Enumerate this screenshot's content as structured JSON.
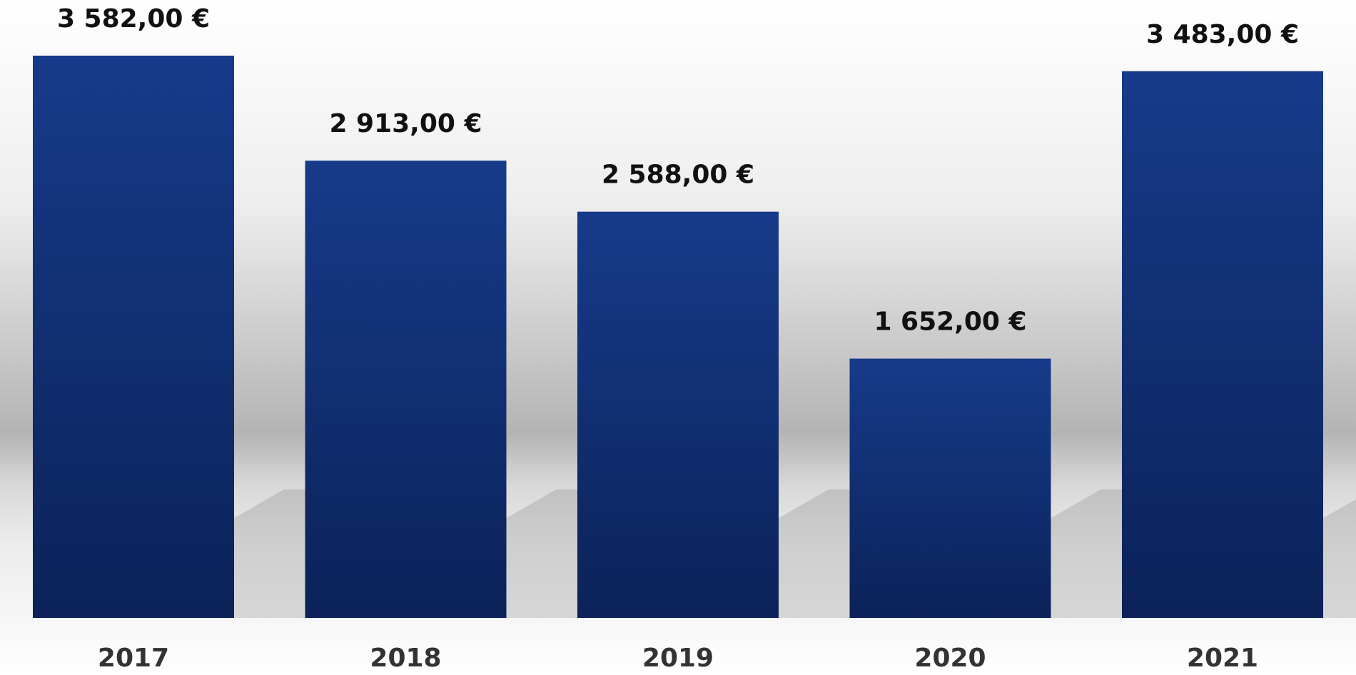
{
  "chart_data": {
    "type": "bar",
    "categories": [
      "2017",
      "2018",
      "2019",
      "2020",
      "2021"
    ],
    "values": [
      3582,
      2913,
      2588,
      1652,
      3483
    ],
    "value_labels": [
      "3 582,00 €",
      "2 913,00 €",
      "2 588,00 €",
      "1 652,00 €",
      "3 483,00 €"
    ],
    "color": "#12327a"
  }
}
